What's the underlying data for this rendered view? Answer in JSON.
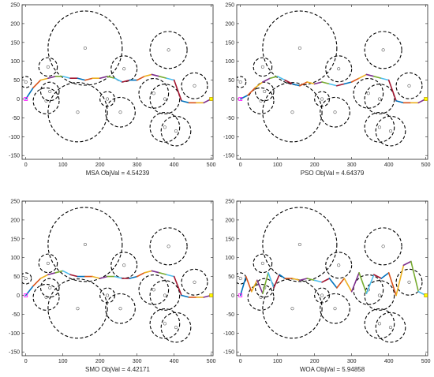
{
  "chart_data": [
    {
      "type": "line",
      "xlabel": "MSA  ObjVal = 4.54239",
      "xlim": [
        -10,
        505
      ],
      "ylim": [
        -160,
        250
      ],
      "xticks": [
        0,
        100,
        200,
        300,
        400,
        500
      ],
      "yticks": [
        -150,
        -100,
        -50,
        0,
        50,
        100,
        150,
        200,
        250
      ],
      "grid": false,
      "path": {
        "x": [
          0,
          20,
          40,
          60,
          80,
          100,
          120,
          140,
          160,
          180,
          200,
          220,
          240,
          260,
          280,
          300,
          320,
          340,
          360,
          380,
          400,
          420,
          440,
          460,
          480,
          500
        ],
        "y": [
          0,
          30,
          50,
          55,
          60,
          60,
          55,
          55,
          50,
          55,
          55,
          60,
          55,
          45,
          50,
          50,
          60,
          65,
          60,
          55,
          50,
          -5,
          -10,
          -10,
          -10,
          0
        ]
      }
    },
    {
      "type": "line",
      "xlabel": "PSO  ObjVal = 4.64379",
      "xlim": [
        -10,
        505
      ],
      "ylim": [
        -160,
        250
      ],
      "xticks": [
        0,
        100,
        200,
        300,
        400,
        500
      ],
      "yticks": [
        -150,
        -100,
        -50,
        0,
        50,
        100,
        150,
        200,
        250
      ],
      "grid": false,
      "path": {
        "x": [
          0,
          20,
          40,
          60,
          80,
          100,
          120,
          140,
          160,
          180,
          200,
          220,
          240,
          260,
          280,
          300,
          320,
          340,
          360,
          380,
          400,
          420,
          440,
          460,
          480,
          500
        ],
        "y": [
          0,
          10,
          30,
          45,
          55,
          60,
          50,
          40,
          35,
          45,
          40,
          45,
          40,
          35,
          40,
          45,
          55,
          65,
          60,
          55,
          50,
          -5,
          -10,
          -10,
          -10,
          0
        ]
      }
    },
    {
      "type": "line",
      "xlabel": "SMO  ObjVal = 4.42171",
      "xlim": [
        -10,
        505
      ],
      "ylim": [
        -160,
        250
      ],
      "xticks": [
        0,
        100,
        200,
        300,
        400,
        500
      ],
      "yticks": [
        -150,
        -100,
        -50,
        0,
        50,
        100,
        150,
        200,
        250
      ],
      "grid": false,
      "path": {
        "x": [
          0,
          20,
          40,
          60,
          80,
          100,
          120,
          140,
          160,
          180,
          200,
          220,
          240,
          260,
          280,
          300,
          320,
          340,
          360,
          380,
          400,
          420,
          440,
          460,
          480,
          500
        ],
        "y": [
          0,
          25,
          45,
          55,
          60,
          65,
          55,
          50,
          50,
          50,
          45,
          50,
          50,
          45,
          45,
          50,
          60,
          65,
          60,
          55,
          50,
          0,
          -5,
          -5,
          -5,
          0
        ]
      }
    },
    {
      "type": "line",
      "xlabel": "WOA  ObjVal = 5.94858",
      "xlim": [
        -10,
        505
      ],
      "ylim": [
        -160,
        250
      ],
      "xticks": [
        0,
        100,
        200,
        300,
        400,
        500
      ],
      "yticks": [
        -150,
        -100,
        -50,
        0,
        50,
        100,
        150,
        200,
        250
      ],
      "grid": false,
      "path": {
        "x": [
          0,
          15,
          30,
          45,
          60,
          75,
          90,
          105,
          120,
          140,
          160,
          180,
          200,
          220,
          240,
          260,
          280,
          300,
          320,
          340,
          360,
          380,
          400,
          420,
          440,
          460,
          480,
          500
        ],
        "y": [
          0,
          50,
          10,
          40,
          5,
          60,
          20,
          55,
          45,
          45,
          40,
          45,
          40,
          35,
          45,
          20,
          45,
          10,
          60,
          5,
          55,
          45,
          60,
          0,
          80,
          90,
          10,
          0
        ]
      }
    }
  ],
  "obstacles": [
    {
      "x": 160,
      "y": 135,
      "r": 100
    },
    {
      "x": 385,
      "y": 130,
      "r": 50
    },
    {
      "x": 265,
      "y": 80,
      "r": 35
    },
    {
      "x": 60,
      "y": 85,
      "r": 25
    },
    {
      "x": 455,
      "y": 35,
      "r": 35
    },
    {
      "x": 0,
      "y": 45,
      "r": 15
    },
    {
      "x": 65,
      "y": 20,
      "r": 25
    },
    {
      "x": 55,
      "y": -5,
      "r": 35
    },
    {
      "x": 140,
      "y": -35,
      "r": 80
    },
    {
      "x": 220,
      "y": 0,
      "r": 20
    },
    {
      "x": 255,
      "y": -35,
      "r": 40
    },
    {
      "x": 345,
      "y": 15,
      "r": 40
    },
    {
      "x": 375,
      "y": 0,
      "r": 40
    },
    {
      "x": 375,
      "y": -75,
      "r": 40
    },
    {
      "x": 405,
      "y": -85,
      "r": 40
    }
  ],
  "colors": {
    "path_colors": [
      "#0072bd",
      "#d95319",
      "#edb120",
      "#7e2f8e",
      "#77ac30",
      "#4dbeee",
      "#a2142f"
    ],
    "obstacle": "#000000",
    "axes": "#262626"
  }
}
